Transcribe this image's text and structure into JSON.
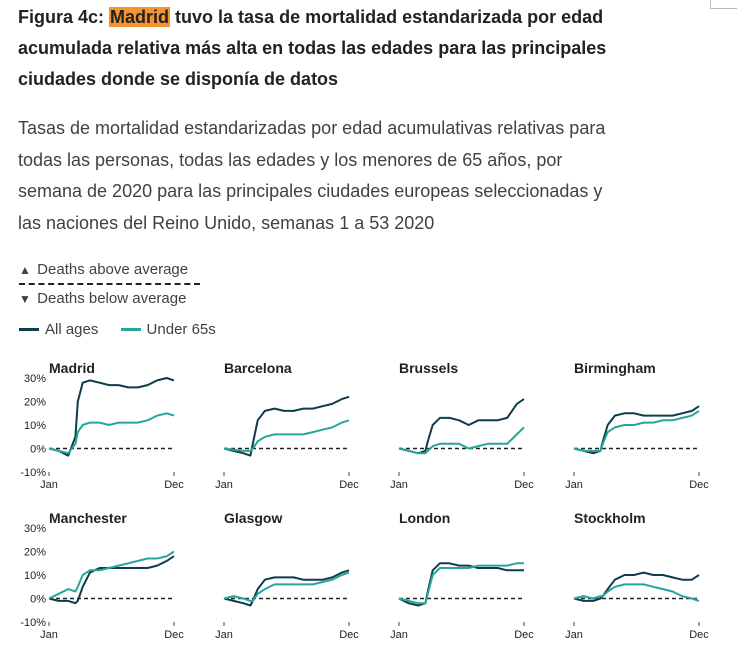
{
  "title": {
    "prefix": "Figura 4c: ",
    "highlight": "Madrid",
    "rest": " tuvo la tasa de mortalidad estandarizada por edad acumulada relativa más alta en todas las edades para las principales ciudades donde se disponía de datos"
  },
  "subtitle": "Tasas de mortalidad estandarizadas por edad acumulativas relativas para todas las personas, todas las edades y los menores de 65 años, por semana de 2020 para las principales ciudades europeas seleccionadas y las naciones del Reino Unido, semanas 1 a 53 2020",
  "key": {
    "above": "Deaths above average",
    "below": "Deaths below average",
    "above_symbol": "▲",
    "below_symbol": "▼"
  },
  "colors": {
    "all_ages": "#0f3b4c",
    "under_65s": "#26a69a",
    "zero_line": "#222222"
  },
  "chart_data": {
    "type": "line",
    "x_ticks": [
      "Jan",
      "Dec"
    ],
    "y_ticks": [
      "30%",
      "20%",
      "10%",
      "0%",
      "-10%"
    ],
    "ylim": [
      -10,
      30
    ],
    "xlim": [
      1,
      53
    ],
    "legend": {
      "placement": "top-left",
      "entries": [
        "All ages",
        "Under 65s"
      ]
    },
    "x": [
      1,
      5,
      9,
      12,
      13,
      15,
      18,
      22,
      26,
      30,
      34,
      38,
      42,
      46,
      50,
      53
    ],
    "panels": [
      {
        "name": "Madrid",
        "series": [
          {
            "name": "All ages",
            "values": [
              0,
              -1,
              -3,
              5,
              20,
              28,
              29,
              28,
              27,
              27,
              26,
              26,
              27,
              29,
              30,
              29
            ]
          },
          {
            "name": "Under 65s",
            "values": [
              0,
              -1,
              -2,
              2,
              7,
              10,
              11,
              11,
              10,
              11,
              11,
              11,
              12,
              14,
              15,
              14
            ]
          }
        ]
      },
      {
        "name": "Barcelona",
        "series": [
          {
            "name": "All ages",
            "values": [
              0,
              -1,
              -2,
              -3,
              2,
              12,
              16,
              17,
              16,
              16,
              17,
              17,
              18,
              19,
              21,
              22
            ]
          },
          {
            "name": "Under 65s",
            "values": [
              0,
              -0.5,
              -1,
              -1,
              0,
              3,
              5,
              6,
              6,
              6,
              6,
              7,
              8,
              9,
              11,
              12
            ]
          }
        ]
      },
      {
        "name": "Brussels",
        "series": [
          {
            "name": "All ages",
            "values": [
              0,
              -1,
              -2,
              -1,
              3,
              10,
              13,
              13,
              12,
              10,
              12,
              12,
              12,
              13,
              19,
              21
            ]
          },
          {
            "name": "Under 65s",
            "values": [
              0,
              -1,
              -2,
              -2,
              -1,
              1,
              2,
              2,
              2,
              0,
              1,
              2,
              2,
              2,
              6,
              9
            ]
          }
        ]
      },
      {
        "name": "Birmingham",
        "series": [
          {
            "name": "All ages",
            "values": [
              0,
              -1,
              -2,
              -1,
              3,
              10,
              14,
              15,
              15,
              14,
              14,
              14,
              14,
              15,
              16,
              18
            ]
          },
          {
            "name": "Under 65s",
            "values": [
              0,
              -1,
              -1,
              -1,
              2,
              7,
              9,
              10,
              10,
              11,
              11,
              12,
              12,
              13,
              14,
              16
            ]
          }
        ]
      },
      {
        "name": "Manchester",
        "series": [
          {
            "name": "All ages",
            "values": [
              0,
              -1,
              -1,
              -2,
              -1,
              5,
              11,
              13,
              13,
              13,
              13,
              13,
              13,
              14,
              16,
              18
            ]
          },
          {
            "name": "Under 65s",
            "values": [
              0,
              2,
              4,
              3,
              5,
              10,
              12,
              12,
              13,
              14,
              15,
              16,
              17,
              17,
              18,
              20
            ]
          }
        ]
      },
      {
        "name": "Glasgow",
        "series": [
          {
            "name": "All ages",
            "values": [
              0,
              -1,
              -2,
              -3,
              -1,
              4,
              8,
              9,
              9,
              9,
              8,
              8,
              8,
              9,
              11,
              12
            ]
          },
          {
            "name": "Under 65s",
            "values": [
              0,
              1,
              0,
              -1,
              -1,
              2,
              4,
              6,
              6,
              6,
              6,
              6,
              7,
              8,
              10,
              11
            ]
          }
        ]
      },
      {
        "name": "London",
        "series": [
          {
            "name": "All ages",
            "values": [
              0,
              -2,
              -3,
              -2,
              3,
              12,
              15,
              15,
              14,
              14,
              13,
              13,
              13,
              12,
              12,
              12
            ]
          },
          {
            "name": "Under 65s",
            "values": [
              0,
              -1,
              -2,
              -2,
              2,
              10,
              13,
              13,
              13,
              13,
              14,
              14,
              14,
              14,
              15,
              15
            ]
          }
        ]
      },
      {
        "name": "Stockholm",
        "series": [
          {
            "name": "All ages",
            "values": [
              0,
              -1,
              -1,
              0,
              1,
              4,
              8,
              10,
              10,
              11,
              10,
              10,
              9,
              8,
              8,
              10
            ]
          },
          {
            "name": "Under 65s",
            "values": [
              0,
              1,
              0,
              1,
              1,
              3,
              5,
              6,
              6,
              6,
              5,
              4,
              3,
              1,
              0,
              -1
            ]
          }
        ]
      }
    ]
  }
}
